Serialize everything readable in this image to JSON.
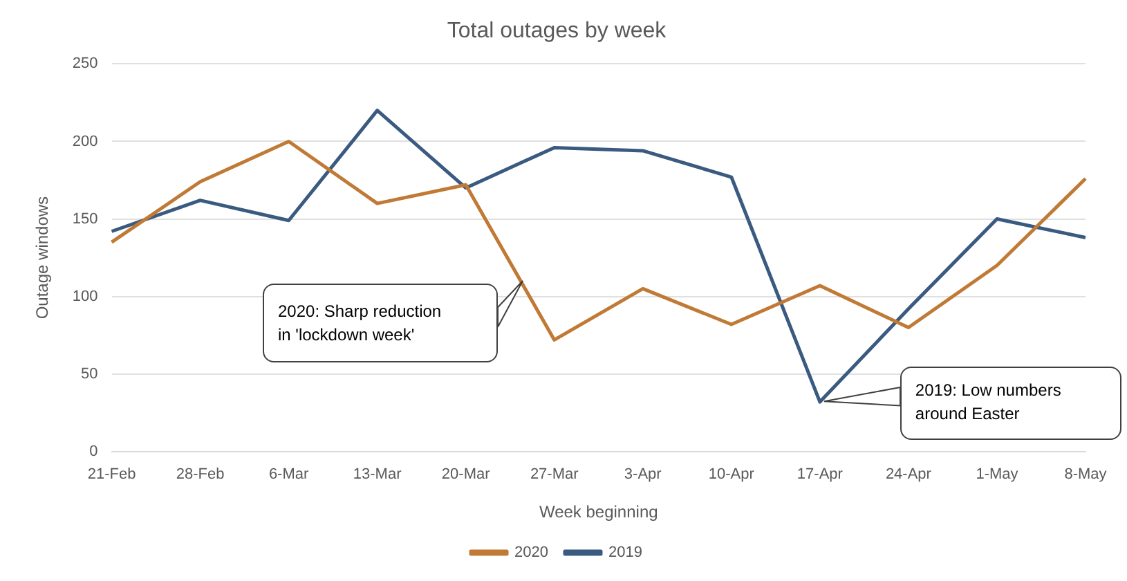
{
  "chart_data": {
    "type": "line",
    "title": "Total outages by week",
    "xlabel": "Week beginning",
    "ylabel": "Outage windows",
    "categories": [
      "21-Feb",
      "28-Feb",
      "6-Mar",
      "13-Mar",
      "20-Mar",
      "27-Mar",
      "3-Apr",
      "10-Apr",
      "17-Apr",
      "24-Apr",
      "1-May",
      "8-May"
    ],
    "series": [
      {
        "name": "2020",
        "color": "#c07a35",
        "values": [
          135,
          174,
          200,
          160,
          172,
          72,
          105,
          82,
          107,
          80,
          120,
          176
        ]
      },
      {
        "name": "2019",
        "color": "#3a5a80",
        "values": [
          142,
          162,
          149,
          220,
          170,
          196,
          194,
          177,
          32,
          92,
          150,
          138
        ]
      }
    ],
    "ylim": [
      0,
      250
    ],
    "yticks": [
      0,
      50,
      100,
      150,
      200,
      250
    ],
    "grid": "y",
    "legend": "bottom",
    "marker": "none",
    "line_style": "solid",
    "annotations": [
      "2020: Sharp reduction\nin 'lockdown week'",
      {
        "text": "2019: Low numbers\naround Easter",
        "x": "17-Apr",
        "y": 32
      }
    ]
  }
}
